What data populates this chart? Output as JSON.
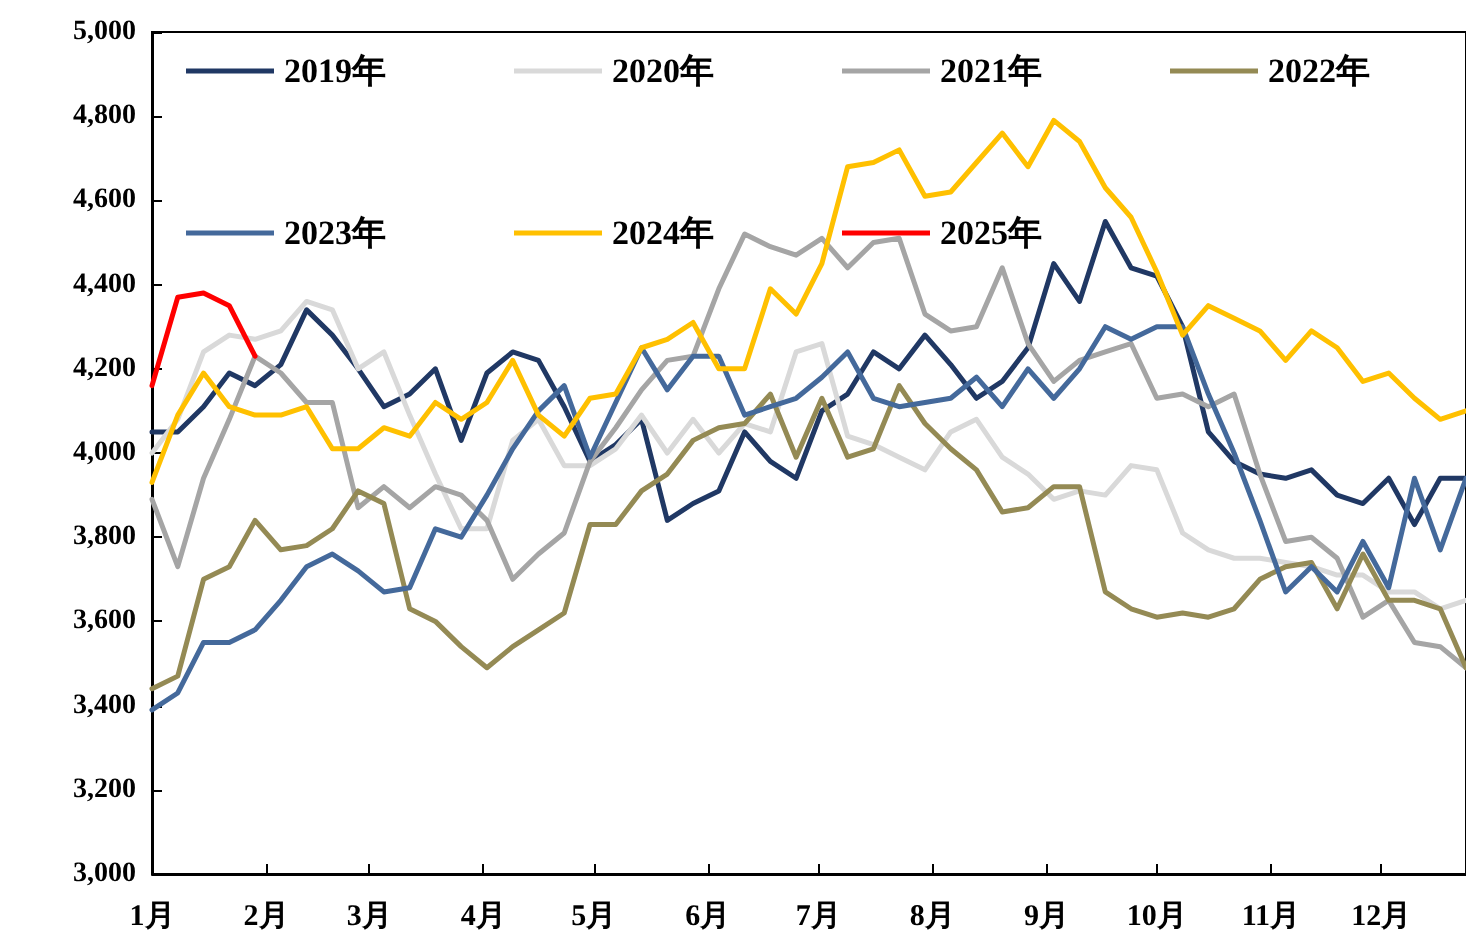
{
  "chart_data": {
    "type": "line",
    "marker": "none",
    "line_style": "solid",
    "grid": false,
    "legend": "top",
    "x": [
      "--01-01",
      "--01-08",
      "--01-15",
      "--01-22",
      "--01-29",
      "--02-05",
      "--02-12",
      "--02-19",
      "--02-26",
      "--03-05",
      "--03-12",
      "--03-19",
      "--03-26",
      "--04-02",
      "--04-09",
      "--04-16",
      "--04-23",
      "--04-30",
      "--05-07",
      "--05-14",
      "--05-21",
      "--05-28",
      "--06-04",
      "--06-11",
      "--06-18",
      "--06-25",
      "--07-02",
      "--07-09",
      "--07-16",
      "--07-23",
      "--07-30",
      "--08-06",
      "--08-13",
      "--08-20",
      "--08-27",
      "--09-03",
      "--09-10",
      "--09-17",
      "--09-24",
      "--10-01",
      "--10-08",
      "--10-15",
      "--10-22",
      "--10-29",
      "--11-05",
      "--11-12",
      "--11-19",
      "--11-26",
      "--12-03",
      "--12-10",
      "--12-17",
      "--12-24"
    ],
    "xlim": [
      "--01-01",
      "--12-24"
    ],
    "xticks": [
      {
        "value": "--01-01",
        "label": "1月"
      },
      {
        "value": "--02-01",
        "label": "2月"
      },
      {
        "value": "--03-01",
        "label": "3月"
      },
      {
        "value": "--04-01",
        "label": "4月"
      },
      {
        "value": "--05-01",
        "label": "5月"
      },
      {
        "value": "--06-01",
        "label": "6月"
      },
      {
        "value": "--07-01",
        "label": "7月"
      },
      {
        "value": "--08-01",
        "label": "8月"
      },
      {
        "value": "--09-01",
        "label": "9月"
      },
      {
        "value": "--10-01",
        "label": "10月"
      },
      {
        "value": "--11-01",
        "label": "11月"
      },
      {
        "value": "--12-01",
        "label": "12月"
      }
    ],
    "ylim": [
      3000,
      5000
    ],
    "yticks": [
      {
        "value": 3000,
        "label": "3,000"
      },
      {
        "value": 3200,
        "label": "3,200"
      },
      {
        "value": 3400,
        "label": "3,400"
      },
      {
        "value": 3600,
        "label": "3,600"
      },
      {
        "value": 3800,
        "label": "3,800"
      },
      {
        "value": 4000,
        "label": "4,000"
      },
      {
        "value": 4200,
        "label": "4,200"
      },
      {
        "value": 4400,
        "label": "4,400"
      },
      {
        "value": 4600,
        "label": "4,600"
      },
      {
        "value": 4800,
        "label": "4,800"
      },
      {
        "value": 5000,
        "label": "5,000"
      }
    ],
    "series": [
      {
        "name": "2019年",
        "color": "#203864",
        "values": [
          4050,
          4050,
          4110,
          4190,
          4160,
          4210,
          4340,
          4280,
          4200,
          4110,
          4140,
          4200,
          4030,
          4190,
          4240,
          4220,
          4110,
          3980,
          4020,
          4080,
          3840,
          3880,
          3910,
          4050,
          3980,
          3940,
          4100,
          4140,
          4240,
          4200,
          4280,
          4210,
          4130,
          4170,
          4250,
          4450,
          4360,
          4550,
          4440,
          4420,
          4300,
          4050,
          3980,
          3950,
          3940,
          3960,
          3900,
          3880,
          3940,
          3830,
          3940,
          3940
        ]
      },
      {
        "name": "2020年",
        "color": "#d9d9d9",
        "values": [
          4000,
          4080,
          4240,
          4280,
          4270,
          4290,
          4360,
          4340,
          4200,
          4240,
          4090,
          3950,
          3820,
          3820,
          4030,
          4080,
          3970,
          3970,
          4010,
          4090,
          4000,
          4080,
          4000,
          4070,
          4050,
          4240,
          4260,
          4040,
          4020,
          3990,
          3960,
          4050,
          4080,
          3990,
          3950,
          3890,
          3910,
          3900,
          3970,
          3960,
          3810,
          3770,
          3750,
          3750,
          3740,
          3730,
          3710,
          3710,
          3670,
          3670,
          3630,
          3650
        ]
      },
      {
        "name": "2021年",
        "color": "#a5a5a5",
        "values": [
          3890,
          3730,
          3940,
          4080,
          4230,
          4190,
          4120,
          4120,
          3870,
          3920,
          3870,
          3920,
          3900,
          3840,
          3700,
          3760,
          3810,
          3980,
          4060,
          4150,
          4220,
          4230,
          4390,
          4520,
          4490,
          4470,
          4510,
          4440,
          4500,
          4510,
          4330,
          4290,
          4300,
          4440,
          4260,
          4170,
          4220,
          4240,
          4260,
          4130,
          4140,
          4110,
          4140,
          3950,
          3790,
          3800,
          3750,
          3610,
          3650,
          3550,
          3540,
          3490
        ]
      },
      {
        "name": "2022年",
        "color": "#948a54",
        "values": [
          3440,
          3470,
          3700,
          3730,
          3840,
          3770,
          3780,
          3820,
          3910,
          3880,
          3630,
          3600,
          3540,
          3490,
          3540,
          3580,
          3620,
          3830,
          3830,
          3910,
          3950,
          4030,
          4060,
          4070,
          4140,
          3990,
          4130,
          3990,
          4010,
          4160,
          4070,
          4010,
          3960,
          3860,
          3870,
          3920,
          3920,
          3670,
          3630,
          3610,
          3620,
          3610,
          3630,
          3700,
          3730,
          3740,
          3630,
          3760,
          3650,
          3650,
          3630,
          3490
        ]
      },
      {
        "name": "2023年",
        "color": "#44699b",
        "values": [
          3390,
          3430,
          3550,
          3550,
          3580,
          3650,
          3730,
          3760,
          3720,
          3670,
          3680,
          3820,
          3800,
          3900,
          4010,
          4100,
          4160,
          3990,
          4120,
          4250,
          4150,
          4230,
          4230,
          4090,
          4110,
          4130,
          4180,
          4240,
          4130,
          4110,
          4120,
          4130,
          4180,
          4110,
          4200,
          4130,
          4200,
          4300,
          4270,
          4300,
          4300,
          4140,
          4000,
          3840,
          3670,
          3730,
          3670,
          3790,
          3680,
          3940,
          3770,
          3940
        ]
      },
      {
        "name": "2024年",
        "color": "#ffc000",
        "values": [
          3930,
          4090,
          4190,
          4110,
          4090,
          4090,
          4110,
          4010,
          4010,
          4060,
          4040,
          4120,
          4080,
          4120,
          4220,
          4090,
          4040,
          4130,
          4140,
          4250,
          4270,
          4310,
          4200,
          4200,
          4390,
          4330,
          4450,
          4680,
          4690,
          4720,
          4610,
          4620,
          4690,
          4760,
          4680,
          4790,
          4740,
          4630,
          4560,
          4430,
          4280,
          4350,
          4320,
          4290,
          4220,
          4290,
          4250,
          4170,
          4190,
          4130,
          4080,
          4100
        ]
      },
      {
        "name": "2025年",
        "color": "#ff0000",
        "x": [
          "--01-01",
          "--01-08",
          "--01-15",
          "--01-22",
          "--01-29"
        ],
        "values": [
          4160,
          4370,
          4380,
          4350,
          4230
        ]
      }
    ]
  }
}
